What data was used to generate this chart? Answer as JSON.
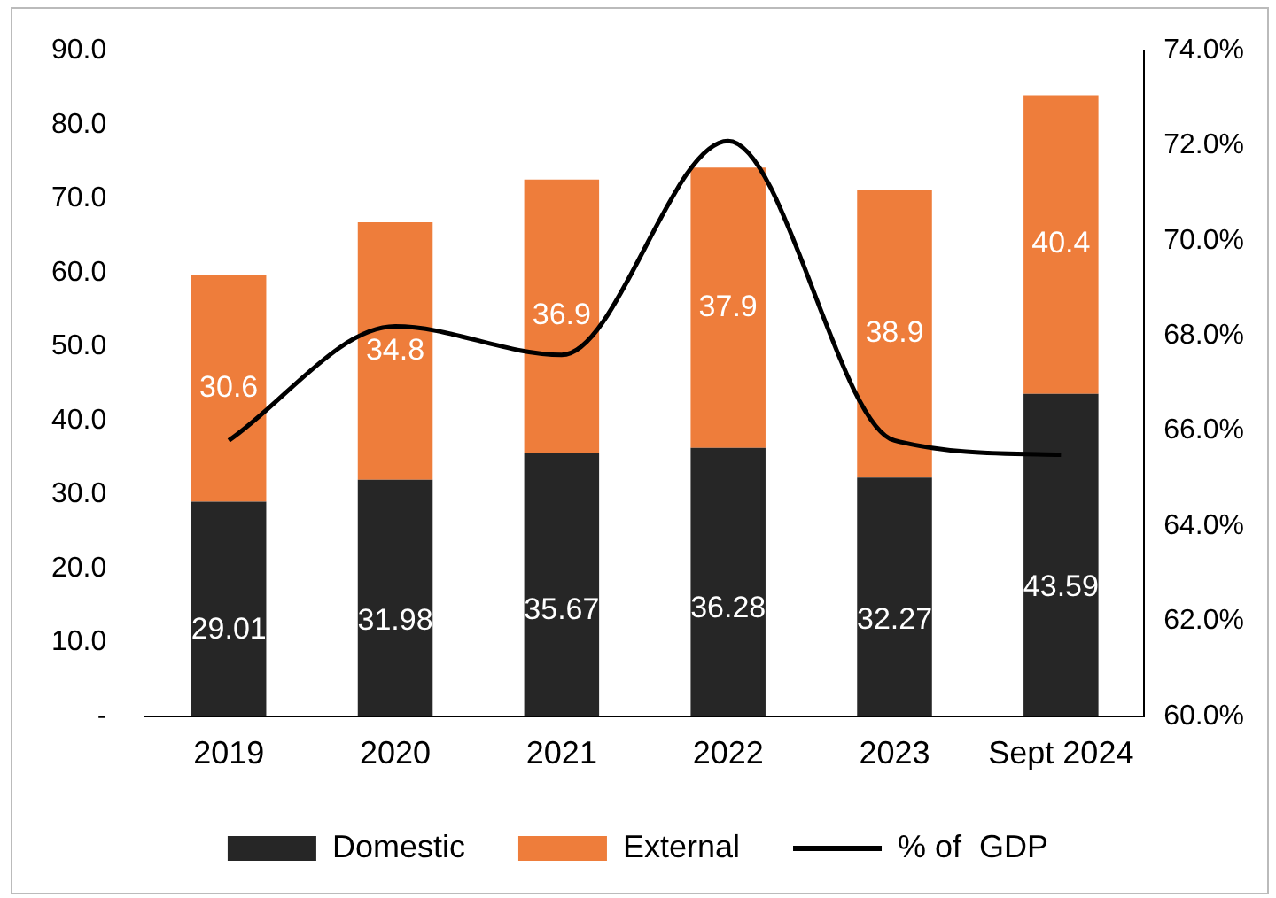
{
  "chart_data": {
    "type": "bar",
    "stacked": true,
    "categories": [
      "2019",
      "2020",
      "2021",
      "2022",
      "2023",
      "Sept 2024"
    ],
    "series": [
      {
        "name": "Domestic",
        "color": "#262626",
        "values": [
          29.01,
          31.98,
          35.67,
          36.28,
          32.27,
          43.59
        ],
        "value_labels": [
          "29.01",
          "31.98",
          "35.67",
          "36.28",
          "32.27",
          "43.59"
        ]
      },
      {
        "name": "External",
        "color": "#ee7d3b",
        "values": [
          30.6,
          34.8,
          36.9,
          37.9,
          38.9,
          40.4
        ],
        "value_labels": [
          "30.6",
          "34.8",
          "36.9",
          "37.9",
          "38.9",
          "40.4"
        ]
      },
      {
        "name": "% of  GDP",
        "type": "line",
        "axis": "y2",
        "color": "#000000",
        "values": [
          65.8,
          68.2,
          67.6,
          72.1,
          65.8,
          65.5
        ]
      }
    ],
    "ylim": [
      0,
      90
    ],
    "yticks": [
      {
        "value": 0,
        "label": "-"
      },
      {
        "value": 10,
        "label": "10.0"
      },
      {
        "value": 20,
        "label": "20.0"
      },
      {
        "value": 30,
        "label": "30.0"
      },
      {
        "value": 40,
        "label": "40.0"
      },
      {
        "value": 50,
        "label": "50.0"
      },
      {
        "value": 60,
        "label": "60.0"
      },
      {
        "value": 70,
        "label": "70.0"
      },
      {
        "value": 80,
        "label": "80.0"
      },
      {
        "value": 90,
        "label": "90.0"
      }
    ],
    "y2lim": [
      60,
      74
    ],
    "y2ticks": [
      {
        "value": 60,
        "label": "60.0%"
      },
      {
        "value": 62,
        "label": "62.0%"
      },
      {
        "value": 64,
        "label": "64.0%"
      },
      {
        "value": 66,
        "label": "66.0%"
      },
      {
        "value": 68,
        "label": "68.0%"
      },
      {
        "value": 70,
        "label": "70.0%"
      },
      {
        "value": 72,
        "label": "72.0%"
      },
      {
        "value": 74,
        "label": "74.0%"
      }
    ],
    "grid": false,
    "legend": "bottom",
    "marker": "none",
    "line_style": "solid"
  }
}
